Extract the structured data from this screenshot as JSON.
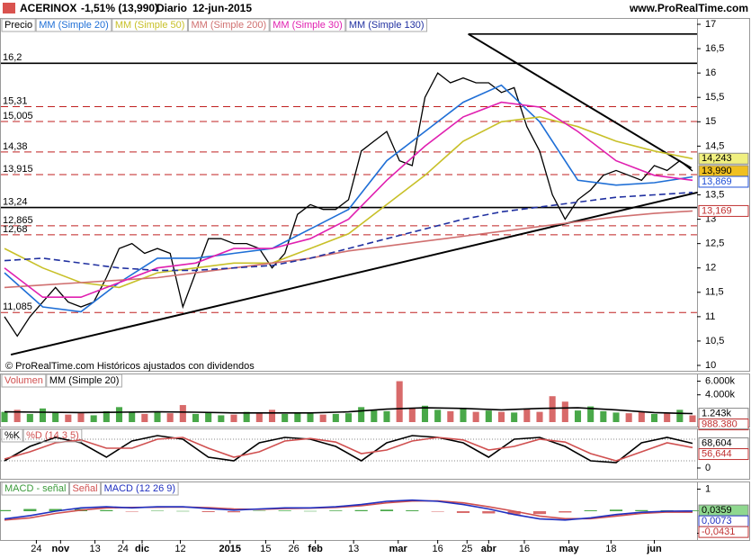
{
  "header": {
    "symbol": "ACERINOX",
    "change": "-1,51% (13,990)",
    "period": "Diario",
    "date": "12-jun-2015",
    "site": "www.ProRealTime.com"
  },
  "chart_data": [
    {
      "type": "line",
      "footer": "© ProRealTime.com Históricos ajustados con dividendos",
      "xlim": [
        0,
        54
      ],
      "ylim": [
        10,
        17
      ],
      "yticks": [
        17,
        {
          "value": 16.5,
          "label": "16,5"
        },
        16,
        {
          "value": 15.5,
          "label": "15,5"
        },
        15,
        {
          "value": 14.5,
          "label": "14,5"
        },
        {
          "value": 13.5,
          "label": "13,5"
        },
        13,
        {
          "value": 12.5,
          "label": "12,5"
        },
        12,
        {
          "value": 11.5,
          "label": "11,5"
        },
        11,
        {
          "value": 10.5,
          "label": "10,5"
        },
        10
      ],
      "x": [
        0,
        1,
        2,
        3,
        4,
        5,
        6,
        7,
        8,
        9,
        10,
        11,
        12,
        13,
        14,
        15,
        16,
        17,
        18,
        19,
        20,
        21,
        22,
        23,
        24,
        25,
        26,
        27,
        28,
        29,
        30,
        31,
        32,
        33,
        34,
        35,
        36,
        37,
        38,
        39,
        40,
        41,
        42,
        43,
        44,
        45,
        46,
        47,
        48,
        49,
        50,
        51,
        52,
        53,
        54
      ],
      "series": [
        {
          "name": "Precio",
          "color": "#000000",
          "style": "line",
          "values": [
            11.0,
            10.6,
            11.0,
            11.3,
            11.6,
            11.3,
            11.2,
            11.3,
            11.8,
            12.4,
            12.5,
            12.3,
            12.4,
            12.3,
            11.2,
            11.9,
            12.6,
            12.6,
            12.5,
            12.5,
            12.4,
            12.0,
            12.3,
            13.1,
            13.3,
            13.2,
            13.2,
            13.4,
            14.4,
            14.6,
            14.8,
            14.2,
            14.1,
            15.5,
            16.0,
            15.8,
            15.9,
            15.8,
            15.8,
            15.6,
            15.7,
            14.9,
            14.4,
            13.5,
            13.0,
            13.4,
            13.6,
            13.9,
            14.0,
            13.9,
            13.8,
            14.1,
            14.0,
            14.2,
            13.99
          ]
        },
        {
          "name": "MM (Simple 20)",
          "color": "#1f6fd6",
          "style": "line",
          "x": [
            0,
            3,
            6,
            9,
            12,
            15,
            18,
            21,
            24,
            27,
            30,
            33,
            36,
            39,
            42,
            45,
            48,
            51,
            54
          ],
          "values": [
            11.9,
            11.2,
            11.1,
            11.7,
            12.2,
            12.2,
            12.3,
            12.4,
            12.8,
            13.2,
            14.2,
            14.8,
            15.4,
            15.75,
            15.0,
            13.8,
            13.7,
            13.75,
            13.869
          ]
        },
        {
          "name": "MM (Simple 50)",
          "color": "#c8c028",
          "style": "line",
          "x": [
            0,
            3,
            6,
            9,
            12,
            15,
            18,
            21,
            24,
            27,
            30,
            33,
            36,
            39,
            42,
            45,
            48,
            51,
            54
          ],
          "values": [
            12.4,
            12.0,
            11.7,
            11.6,
            11.9,
            12.0,
            12.1,
            12.1,
            12.4,
            12.7,
            13.3,
            13.9,
            14.6,
            15.0,
            15.1,
            14.9,
            14.6,
            14.4,
            14.243
          ]
        },
        {
          "name": "MM (Simple 200)",
          "color": "#d07070",
          "style": "line",
          "x": [
            0,
            3,
            6,
            9,
            12,
            15,
            18,
            21,
            24,
            27,
            30,
            33,
            36,
            39,
            42,
            45,
            48,
            51,
            54
          ],
          "values": [
            11.6,
            11.65,
            11.7,
            11.75,
            11.8,
            11.9,
            12.0,
            12.1,
            12.2,
            12.35,
            12.45,
            12.55,
            12.65,
            12.75,
            12.85,
            12.95,
            13.05,
            13.12,
            13.169
          ]
        },
        {
          "name": "MM (Simple 30)",
          "color": "#e020b0",
          "style": "line",
          "x": [
            0,
            3,
            6,
            9,
            12,
            15,
            18,
            21,
            24,
            27,
            30,
            33,
            36,
            39,
            42,
            45,
            48,
            51,
            54
          ],
          "values": [
            12.0,
            11.4,
            11.4,
            11.7,
            12.0,
            12.1,
            12.4,
            12.4,
            12.6,
            13.0,
            13.8,
            14.5,
            15.1,
            15.4,
            15.3,
            14.8,
            14.2,
            13.9,
            13.8
          ]
        },
        {
          "name": "MM (Simple 130)",
          "color": "#2030a0",
          "style": "dashed",
          "x": [
            0,
            3,
            6,
            9,
            12,
            15,
            18,
            21,
            24,
            27,
            30,
            33,
            36,
            39,
            42,
            45,
            48,
            51,
            54
          ],
          "values": [
            12.15,
            12.2,
            12.1,
            12.0,
            11.95,
            11.95,
            12.0,
            12.05,
            12.2,
            12.4,
            12.6,
            12.8,
            13.0,
            13.15,
            13.25,
            13.35,
            13.45,
            13.5,
            13.55
          ]
        }
      ],
      "levels": [
        {
          "value": 16.8,
          "style": "solid",
          "x_from": 36.4
        },
        {
          "value": 16.2,
          "label": "16,2",
          "style": "solid"
        },
        {
          "value": 15.31,
          "label": "15,31",
          "style": "dashed"
        },
        {
          "value": 15.005,
          "label": "15,005",
          "style": "dashed"
        },
        {
          "value": 14.38,
          "label": "14,38",
          "style": "dashed"
        },
        {
          "value": 13.915,
          "label": "13,915",
          "style": "dashed"
        },
        {
          "value": 13.24,
          "label": "13,24",
          "style": "solid"
        },
        {
          "value": 12.865,
          "label": "12,865",
          "style": "dashed"
        },
        {
          "value": 12.68,
          "label": "12,68",
          "style": "dashed"
        },
        {
          "value": 11.085,
          "label": "11,085",
          "style": "dashed"
        }
      ],
      "trendlines": [
        {
          "x": [
            0.5,
            54.4
          ],
          "y": [
            10.22,
            13.55
          ]
        },
        {
          "x": [
            36.4,
            53.9
          ],
          "y": [
            16.8,
            14.05
          ]
        }
      ],
      "last_labels": [
        {
          "value": 14.243,
          "label": "14,243",
          "color": "#000000",
          "bg": "#f0f080"
        },
        {
          "value": 13.99,
          "label": "13,990",
          "color": "#000000",
          "bg": "#f0c020"
        },
        {
          "value": 13.869,
          "label": "13,869",
          "color": "#1f4fd6",
          "bg": "#ffffff"
        },
        {
          "value": 13.169,
          "label": "13,169",
          "color": "#c03030",
          "bg": "#ffffff"
        }
      ]
    },
    {
      "type": "bar",
      "xlim": [
        0,
        54
      ],
      "ylim": [
        0,
        6600000
      ],
      "yticks": [
        {
          "value": 6000000,
          "label": "6.000k"
        },
        {
          "value": 4000000,
          "label": "4.000k"
        }
      ],
      "x": [
        0,
        1,
        2,
        3,
        4,
        5,
        6,
        7,
        8,
        9,
        10,
        11,
        12,
        13,
        14,
        15,
        16,
        17,
        18,
        19,
        20,
        21,
        22,
        23,
        24,
        25,
        26,
        27,
        28,
        29,
        30,
        31,
        32,
        33,
        34,
        35,
        36,
        37,
        38,
        39,
        40,
        41,
        42,
        43,
        44,
        45,
        46,
        47,
        48,
        49,
        50,
        51,
        52,
        53,
        54
      ],
      "series": [
        {
          "name": "Volumen",
          "color": "#d05050",
          "style": "bar",
          "color_by": "price",
          "up_color": "#49a849",
          "down_color": "#d86a6a",
          "values": [
            1500000,
            1800000,
            1200000,
            2000000,
            1400000,
            1100000,
            1300000,
            1000000,
            1600000,
            2200000,
            1400000,
            1200000,
            1500000,
            1300000,
            2500000,
            1200000,
            1400000,
            1000000,
            1100000,
            1500000,
            1300000,
            1800000,
            1200000,
            1400000,
            1300000,
            1100000,
            1200000,
            1300000,
            2200000,
            1700000,
            1600000,
            6000000,
            2000000,
            2400000,
            1800000,
            1600000,
            2100000,
            1500000,
            1700000,
            1500000,
            1400000,
            2000000,
            1500000,
            3800000,
            3000000,
            1700000,
            2300000,
            1600000,
            1400000,
            1300000,
            1500000,
            1200000,
            1300000,
            1800000,
            988380
          ]
        },
        {
          "name": "MM (Simple 20)",
          "color": "#000000",
          "style": "line",
          "x": [
            0,
            3,
            6,
            9,
            12,
            15,
            18,
            21,
            24,
            27,
            30,
            33,
            36,
            39,
            42,
            45,
            48,
            51,
            54
          ],
          "values": [
            1500000,
            1450000,
            1400000,
            1450000,
            1500000,
            1450000,
            1350000,
            1350000,
            1350000,
            1500000,
            1900000,
            2100000,
            2000000,
            1800000,
            2000000,
            2100000,
            1800000,
            1400000,
            1243000
          ]
        }
      ],
      "last_labels": [
        {
          "value": 1243000,
          "label": "1.243k",
          "color": "#000000",
          "bg": "#ffffff"
        },
        {
          "value": 988380,
          "label": "988.380",
          "color": "#c03030",
          "bg": "#ffffff"
        }
      ]
    },
    {
      "type": "line",
      "xlim": [
        0,
        54
      ],
      "ylim": [
        0,
        100
      ],
      "yticks": [
        0
      ],
      "x": [
        0,
        2,
        4,
        6,
        8,
        10,
        12,
        14,
        16,
        18,
        20,
        22,
        24,
        26,
        28,
        30,
        32,
        34,
        36,
        38,
        40,
        42,
        44,
        46,
        48,
        50,
        52,
        54
      ],
      "levels": [
        {
          "value": 20,
          "style": "dotted"
        },
        {
          "value": 80,
          "style": "dotted"
        }
      ],
      "series": [
        {
          "name": "%K",
          "color": "#000000",
          "style": "line",
          "values": [
            20,
            60,
            85,
            70,
            30,
            75,
            90,
            80,
            30,
            20,
            70,
            85,
            80,
            60,
            20,
            70,
            90,
            85,
            70,
            30,
            80,
            85,
            60,
            20,
            15,
            70,
            85,
            68.604
          ]
        },
        {
          "name": "%D (14 3 5)",
          "color": "#d05050",
          "style": "line",
          "values": [
            25,
            45,
            70,
            78,
            55,
            55,
            80,
            85,
            55,
            30,
            45,
            75,
            82,
            72,
            40,
            50,
            75,
            85,
            78,
            50,
            60,
            80,
            72,
            40,
            20,
            45,
            70,
            56.644
          ]
        }
      ],
      "last_labels": [
        {
          "value": 68.604,
          "label": "68,604",
          "color": "#000000",
          "bg": "#ffffff"
        },
        {
          "value": 56.644,
          "label": "56,644",
          "color": "#c03030",
          "bg": "#ffffff"
        }
      ]
    },
    {
      "type": "bar",
      "xlim": [
        0,
        54
      ],
      "ylim": [
        -1.1,
        1.1
      ],
      "yticks": [
        1,
        -1
      ],
      "x": [
        0,
        2,
        4,
        6,
        8,
        10,
        12,
        14,
        16,
        18,
        20,
        22,
        24,
        26,
        28,
        30,
        32,
        34,
        36,
        38,
        40,
        42,
        44,
        46,
        48,
        50,
        52,
        54
      ],
      "series": [
        {
          "name": "MACD - señal",
          "color": "#3a9a3a",
          "style": "bar",
          "color_by": "sign",
          "up_color": "#49a849",
          "down_color": "#d86a6a",
          "values": [
            0.05,
            0.1,
            0.1,
            0.1,
            0.05,
            -0.02,
            0.02,
            0.01,
            -0.04,
            -0.05,
            0.02,
            0.03,
            0.01,
            0.03,
            0.05,
            0.07,
            0.04,
            -0.02,
            -0.08,
            -0.1,
            -0.15,
            -0.13,
            -0.06,
            0.04,
            0.07,
            0.05,
            0.04,
            0.0359
          ]
        },
        {
          "name": "Señal",
          "color": "#d05050",
          "style": "line",
          "values": [
            -0.4,
            -0.3,
            -0.1,
            0.05,
            0.15,
            0.17,
            0.18,
            0.19,
            0.16,
            0.1,
            0.08,
            0.12,
            0.14,
            0.17,
            0.25,
            0.38,
            0.46,
            0.47,
            0.38,
            0.2,
            0.0,
            -0.22,
            -0.34,
            -0.34,
            -0.22,
            -0.1,
            -0.04,
            -0.0431
          ]
        },
        {
          "name": "MACD (12 26 9)",
          "color": "#2030c0",
          "style": "line",
          "values": [
            -0.35,
            -0.2,
            0.0,
            0.15,
            0.2,
            0.15,
            0.2,
            0.2,
            0.12,
            0.05,
            0.1,
            0.15,
            0.15,
            0.2,
            0.3,
            0.45,
            0.5,
            0.45,
            0.3,
            0.1,
            -0.15,
            -0.35,
            -0.4,
            -0.3,
            -0.15,
            -0.05,
            0.0,
            0.0073
          ]
        }
      ],
      "last_labels": [
        {
          "value": 0.0359,
          "label": "0,0359",
          "color": "#000000",
          "bg": "#8fd88f"
        },
        {
          "value": 0.0073,
          "label": "0,0073",
          "color": "#2030c0",
          "bg": "#ffffff"
        },
        {
          "value": -0.0431,
          "label": "-0,0431",
          "color": "#c03030",
          "bg": "#ffffff"
        }
      ],
      "xticks": [
        {
          "value": 2.5,
          "label": "24"
        },
        {
          "value": 4.4,
          "label": "nov"
        },
        {
          "value": 7.1,
          "label": "13"
        },
        {
          "value": 9.3,
          "label": "24"
        },
        {
          "value": 10.8,
          "label": "dic"
        },
        {
          "value": 13.8,
          "label": "12"
        },
        {
          "value": 17.7,
          "label": "2015"
        },
        {
          "value": 20.5,
          "label": "15"
        },
        {
          "value": 22.7,
          "label": "26"
        },
        {
          "value": 24.4,
          "label": "feb"
        },
        {
          "value": 27.4,
          "label": "13"
        },
        {
          "value": 30.9,
          "label": "mar"
        },
        {
          "value": 34.0,
          "label": "16"
        },
        {
          "value": 36.3,
          "label": "25"
        },
        {
          "value": 38.0,
          "label": "abr"
        },
        {
          "value": 40.8,
          "label": "16"
        },
        {
          "value": 44.3,
          "label": "may"
        },
        {
          "value": 47.6,
          "label": "18"
        },
        {
          "value": 51.0,
          "label": "jun"
        }
      ]
    }
  ]
}
